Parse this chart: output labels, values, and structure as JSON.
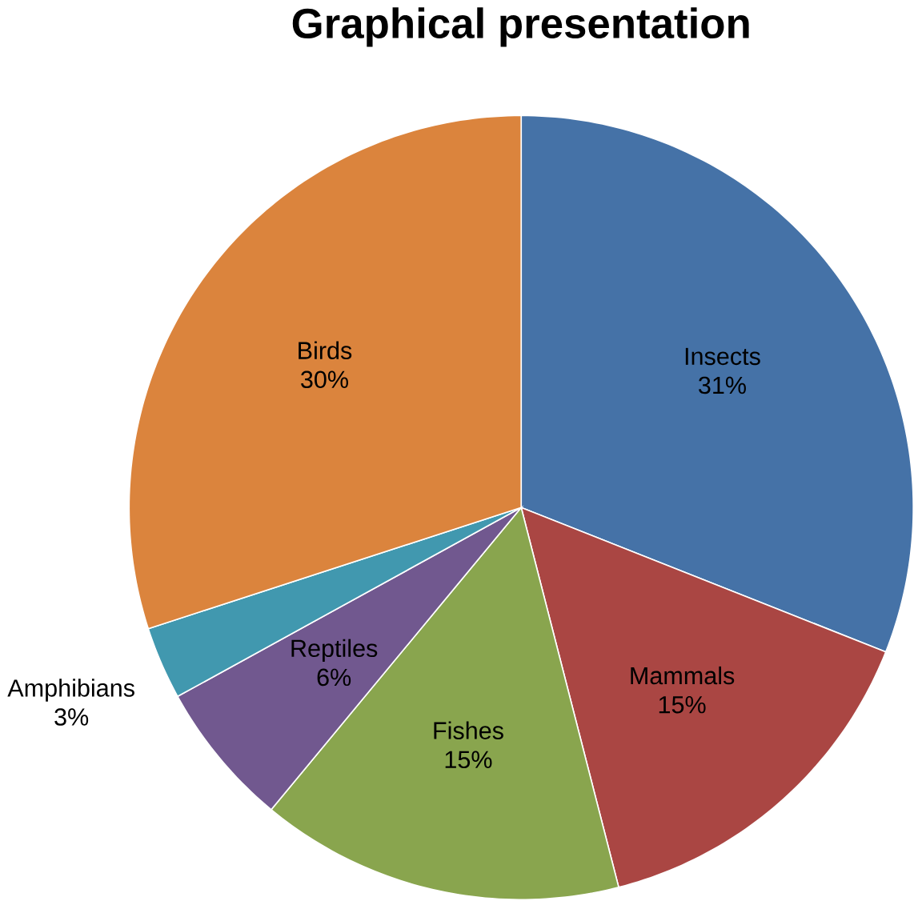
{
  "chart_data": {
    "type": "pie",
    "title": "Graphical presentation",
    "categories": [
      "Insects",
      "Mammals",
      "Fishes",
      "Reptiles",
      "Amphibians",
      "Birds"
    ],
    "values": [
      31,
      15,
      15,
      6,
      3,
      30
    ],
    "value_labels": [
      "31%",
      "15%",
      "15%",
      "6%",
      "3%",
      "30%"
    ],
    "colors": [
      "#4572a7",
      "#aa4643",
      "#89a54e",
      "#71588f",
      "#4198af",
      "#db843d"
    ]
  }
}
